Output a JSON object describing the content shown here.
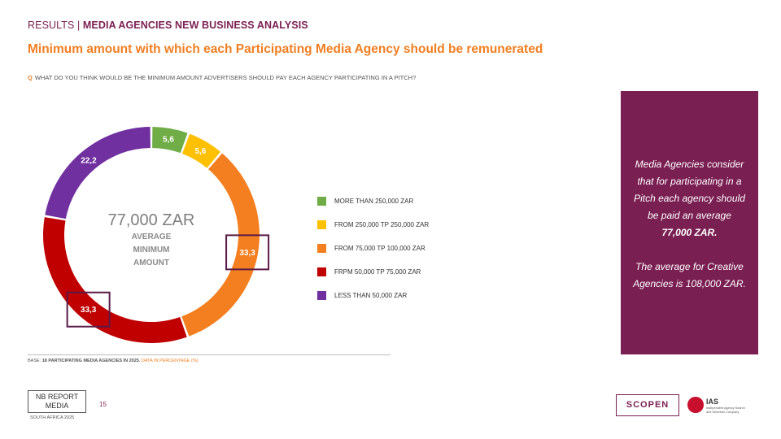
{
  "header": {
    "prefix": "RESULTS | ",
    "section": "MEDIA AGENCIES NEW BUSINESS ANALYSIS"
  },
  "title": "Minimum amount with which each Participating Media Agency should be remunerated",
  "question": {
    "icon": "search-icon",
    "glyph": "Q",
    "text": "WHAT DO YOU THINK WOULD BE THE MINIMUM AMOUNT ADVERTISERS SHOULD PAY EACH AGENCY PARTICIPATING IN A PITCH?"
  },
  "center": {
    "value": "77,000 ZAR",
    "line1": "AVERAGE",
    "line2": "MINIMUM",
    "line3": "AMOUNT"
  },
  "chart_data": {
    "type": "pie",
    "style": "donut",
    "unit": "%",
    "categories": [
      "MORE THAN 250,000 ZAR",
      "FROM 250,000 TP 250,000 ZAR",
      "FROM 75,000 TP 100,000 ZAR",
      "FRPM 50,000 TP 75,000 ZAR",
      "LESS THAN 50,000 ZAR"
    ],
    "values": [
      5.6,
      5.6,
      33.3,
      33.3,
      22.2
    ],
    "labels": [
      "5,6",
      "5,6",
      "33,3",
      "33,3",
      "22,2"
    ],
    "colors": [
      "#70ad47",
      "#ffc000",
      "#f47f20",
      "#c00000",
      "#7030a0"
    ],
    "highlighted": [
      2,
      3
    ],
    "legend_placement": "right"
  },
  "legend": [
    {
      "label": "MORE THAN 250,000 ZAR",
      "color": "#70ad47"
    },
    {
      "label": "FROM 250,000 TP 250,000 ZAR",
      "color": "#ffc000"
    },
    {
      "label": "FROM 75,000 TP 100,000 ZAR",
      "color": "#f47f20"
    },
    {
      "label": "FRPM 50,000 TP 75,000 ZAR",
      "color": "#c00000"
    },
    {
      "label": "LESS THAN 50,000 ZAR",
      "color": "#7030a0"
    }
  ],
  "side_box": {
    "line1": "Media Agencies consider",
    "line2": "that for participating in a",
    "line3": "Pitch each agency should",
    "line4": "be paid an average",
    "line5": "77,000 ZAR.",
    "line6": "The average for Creative",
    "line7": "Agencies is 108,000 ZAR."
  },
  "base": {
    "prefix": "BASE: ",
    "bold": "18 PARTICIPATING MEDIA AGENCIES IN 2025.",
    "note": " DATA IN PERCENTAGE (%)"
  },
  "footer": {
    "logo_line1": "NB REPORT",
    "logo_line2": "MEDIA",
    "logo_sub": "SOUTH AFRICA 2025",
    "page": "15",
    "scopen": "SCOPEN",
    "ias": "IAS",
    "ias_sub": "Independent Agency Search and Selection Company"
  },
  "colors": {
    "brand": "#7a1f52",
    "accent": "#f07e21"
  }
}
